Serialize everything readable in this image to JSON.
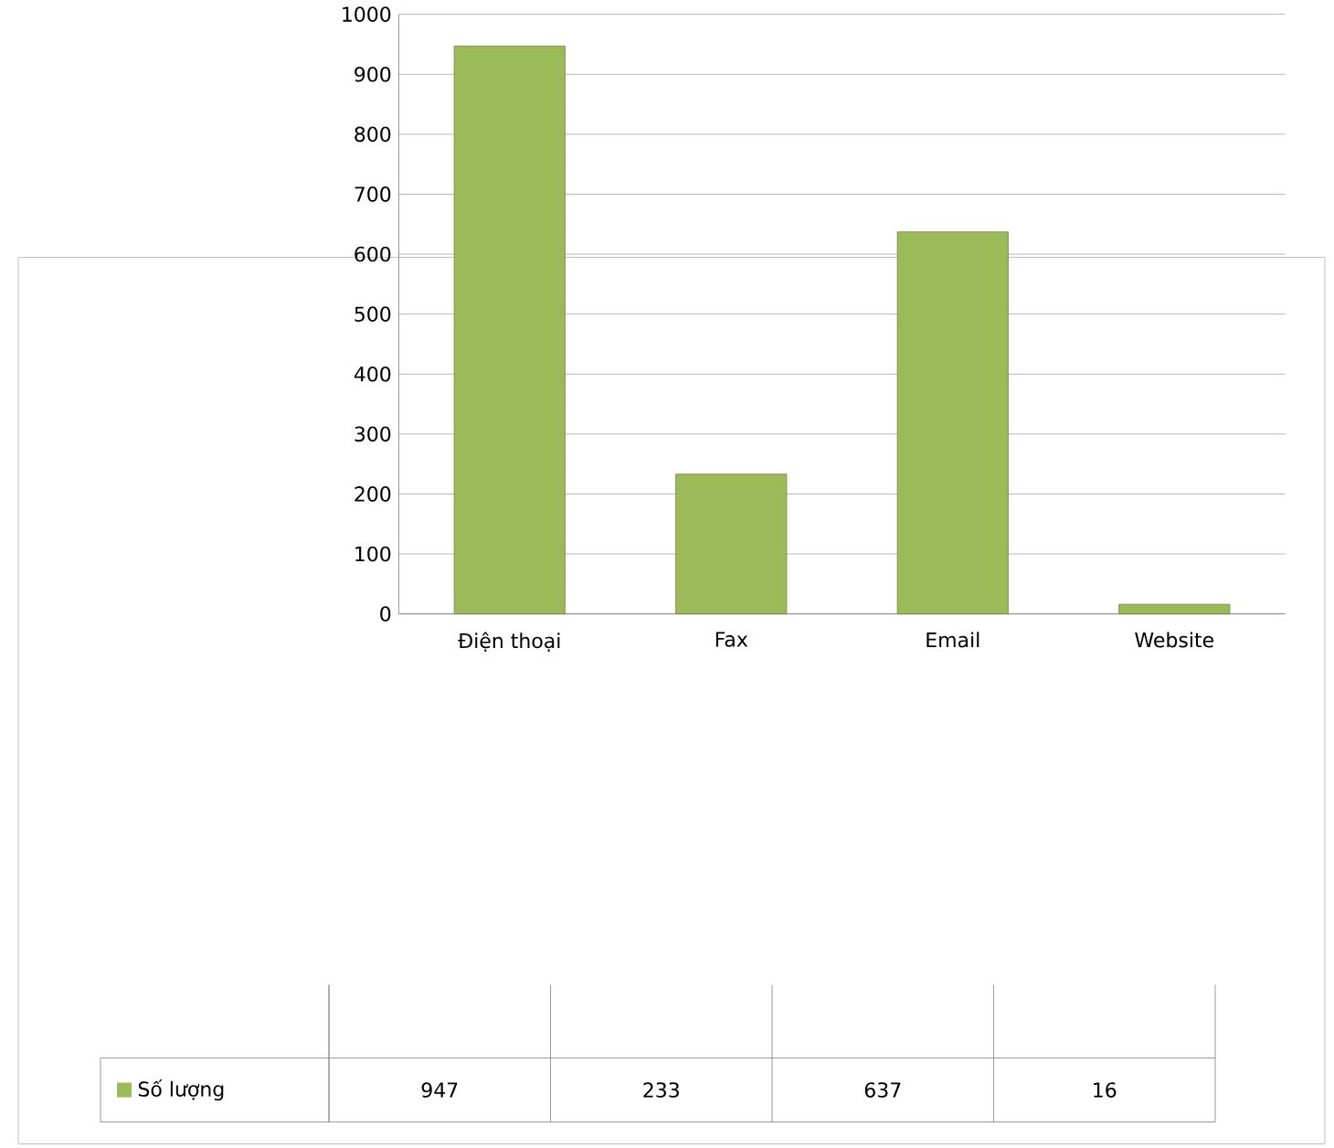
{
  "chart_data": {
    "type": "bar",
    "categories": [
      "Điện thoại",
      "Fax",
      "Email",
      "Website"
    ],
    "series": [
      {
        "name": "Số lượng",
        "color": "#9bbb59",
        "values": [
          947,
          233,
          637,
          16
        ]
      }
    ],
    "ylim": [
      0,
      1000
    ],
    "yticks": [
      0,
      100,
      200,
      300,
      400,
      500,
      600,
      700,
      800,
      900,
      1000
    ],
    "grid": "y",
    "legend": "bottom left",
    "data_labels": true
  }
}
